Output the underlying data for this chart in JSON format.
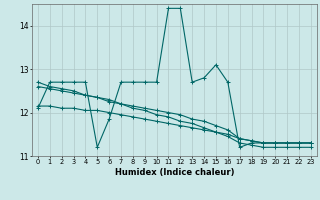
{
  "xlabel": "Humidex (Indice chaleur)",
  "background_color": "#cce8e8",
  "grid_color": "#b0c8c8",
  "line_color": "#006666",
  "xlim": [
    -0.5,
    23.5
  ],
  "ylim": [
    11.0,
    14.5
  ],
  "yticks": [
    11,
    12,
    13,
    14
  ],
  "xticks": [
    0,
    1,
    2,
    3,
    4,
    5,
    6,
    7,
    8,
    9,
    10,
    11,
    12,
    13,
    14,
    15,
    16,
    17,
    18,
    19,
    20,
    21,
    22,
    23
  ],
  "series": [
    [
      12.1,
      12.7,
      12.7,
      12.7,
      12.7,
      11.2,
      11.85,
      12.7,
      12.7,
      12.7,
      12.7,
      14.4,
      14.4,
      12.7,
      12.8,
      13.1,
      12.7,
      11.2,
      11.3,
      11.3,
      11.3,
      11.3,
      11.3,
      11.3
    ],
    [
      12.15,
      12.15,
      12.1,
      12.1,
      12.05,
      12.05,
      12.0,
      11.95,
      11.9,
      11.85,
      11.8,
      11.75,
      11.7,
      11.65,
      11.6,
      11.55,
      11.5,
      11.4,
      11.35,
      11.3,
      11.3,
      11.3,
      11.3,
      11.3
    ],
    [
      12.6,
      12.55,
      12.5,
      12.45,
      12.4,
      12.35,
      12.3,
      12.2,
      12.15,
      12.1,
      12.05,
      12.0,
      11.95,
      11.85,
      11.8,
      11.7,
      11.6,
      11.4,
      11.35,
      11.3,
      11.3,
      11.3,
      11.3,
      11.3
    ],
    [
      12.7,
      12.6,
      12.55,
      12.5,
      12.4,
      12.35,
      12.25,
      12.2,
      12.1,
      12.05,
      11.95,
      11.9,
      11.8,
      11.75,
      11.65,
      11.55,
      11.45,
      11.3,
      11.25,
      11.2,
      11.2,
      11.2,
      11.2,
      11.2
    ]
  ]
}
